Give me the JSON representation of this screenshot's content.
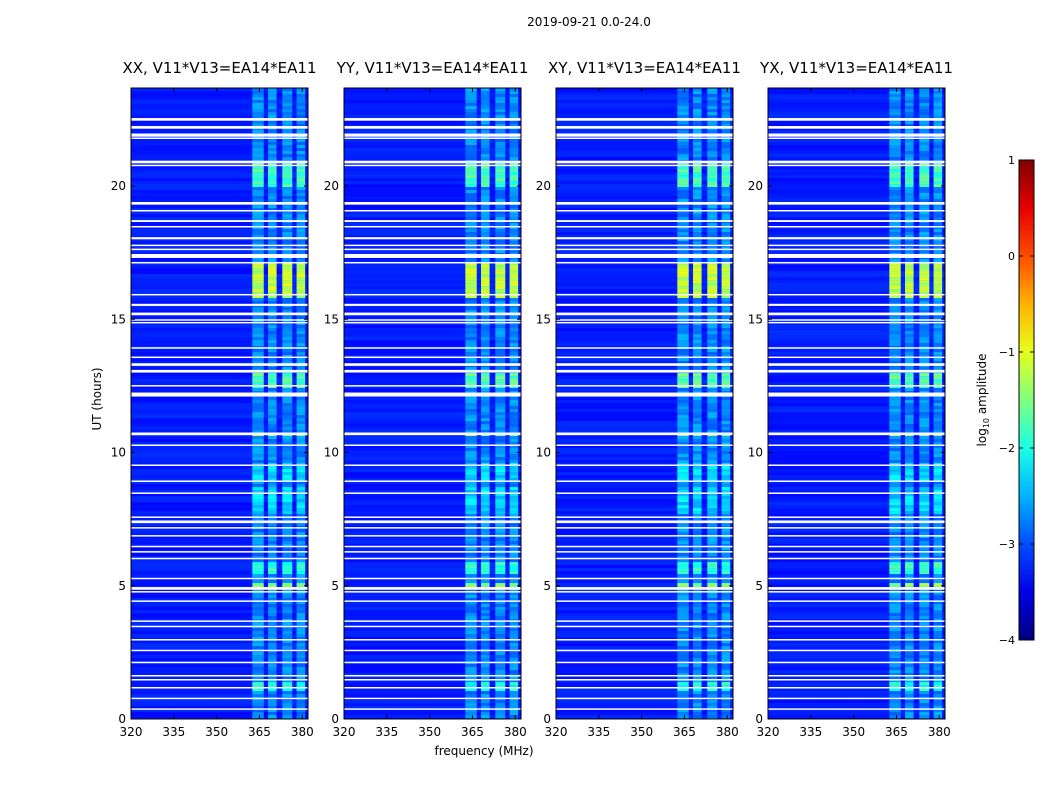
{
  "figure": {
    "suptitle": "2019-09-21 0.0-24.0"
  },
  "chart_data": {
    "type": "heatmap",
    "title": "2019-09-21 0.0-24.0",
    "xlabel": "frequency (MHz)",
    "ylabel": "UT (hours)",
    "xlim": [
      320,
      382
    ],
    "ylim": [
      0,
      24
    ],
    "x_ticks": [
      320,
      335,
      350,
      365,
      380
    ],
    "y_ticks": [
      0,
      5,
      10,
      15,
      20
    ],
    "data_end_hour": 23.9,
    "panels": [
      {
        "title": "XX, V11*V13=EA14*EA11"
      },
      {
        "title": "YY, V11*V13=EA14*EA11"
      },
      {
        "title": "XY, V11*V13=EA14*EA11"
      },
      {
        "title": "YX, V11*V13=EA14*EA11"
      }
    ],
    "colorbar": {
      "label": "log",
      "label_sub": "10",
      "label_suffix": " amplitude",
      "range": [
        -4,
        1
      ],
      "ticks": [
        "−4",
        "−3",
        "−2",
        "−1",
        "0",
        "1"
      ],
      "colormap": "jet"
    },
    "rfi_channel_bands_mhz": [
      [
        362.5,
        366.5
      ],
      [
        368.0,
        371.0
      ],
      [
        373.0,
        376.5
      ],
      [
        378.0,
        381.0
      ]
    ],
    "flagged_time_gaps_hours": [
      [
        22.45,
        22.55
      ],
      [
        22.15,
        22.25
      ],
      [
        21.85,
        21.97
      ],
      [
        21.78,
        21.82
      ],
      [
        20.85,
        20.95
      ],
      [
        20.75,
        20.8
      ],
      [
        19.3,
        19.4
      ],
      [
        19.05,
        19.1
      ],
      [
        18.65,
        18.72
      ],
      [
        18.45,
        18.5
      ],
      [
        18.0,
        18.08
      ],
      [
        17.75,
        17.8
      ],
      [
        17.6,
        17.65
      ],
      [
        17.3,
        17.45
      ],
      [
        17.1,
        17.15
      ],
      [
        15.9,
        15.95
      ],
      [
        15.5,
        15.58
      ],
      [
        15.15,
        15.25
      ],
      [
        14.95,
        15.0
      ],
      [
        14.85,
        14.9
      ],
      [
        13.9,
        13.95
      ],
      [
        13.55,
        13.6
      ],
      [
        13.25,
        13.35
      ],
      [
        13.0,
        13.1
      ],
      [
        12.48,
        12.53
      ],
      [
        12.1,
        12.25
      ],
      [
        10.65,
        10.75
      ],
      [
        10.25,
        10.3
      ],
      [
        9.5,
        9.55
      ],
      [
        8.9,
        8.95
      ],
      [
        8.45,
        8.5
      ],
      [
        7.55,
        7.6
      ],
      [
        7.35,
        7.45
      ],
      [
        7.15,
        7.2
      ],
      [
        6.85,
        6.9
      ],
      [
        6.45,
        6.5
      ],
      [
        6.25,
        6.3
      ],
      [
        6.0,
        6.05
      ],
      [
        5.25,
        5.3
      ],
      [
        4.85,
        4.95
      ],
      [
        4.75,
        4.8
      ],
      [
        4.4,
        4.45
      ],
      [
        3.65,
        3.7
      ],
      [
        3.45,
        3.5
      ],
      [
        2.95,
        3.0
      ],
      [
        2.55,
        2.6
      ],
      [
        2.1,
        2.15
      ],
      [
        1.6,
        1.65
      ],
      [
        1.45,
        1.5
      ],
      [
        1.15,
        1.2
      ],
      [
        0.75,
        0.8
      ],
      [
        0.35,
        0.4
      ]
    ],
    "bright_intervals_hours": [
      {
        "start": 20.0,
        "end": 20.9,
        "level": -1.8
      },
      {
        "start": 15.8,
        "end": 17.2,
        "level": -1.2
      },
      {
        "start": 12.5,
        "end": 13.0,
        "level": -1.7
      },
      {
        "start": 10.7,
        "end": 10.8,
        "level": -1.4
      },
      {
        "start": 4.9,
        "end": 5.2,
        "level": -1.4
      },
      {
        "start": 5.5,
        "end": 6.0,
        "level": -1.9
      },
      {
        "start": 1.1,
        "end": 1.4,
        "level": -2.0
      },
      {
        "start": 7.8,
        "end": 8.8,
        "level": -2.3
      },
      {
        "start": 9.0,
        "end": 9.7,
        "level": -2.3
      }
    ],
    "background_level": -3.2
  }
}
